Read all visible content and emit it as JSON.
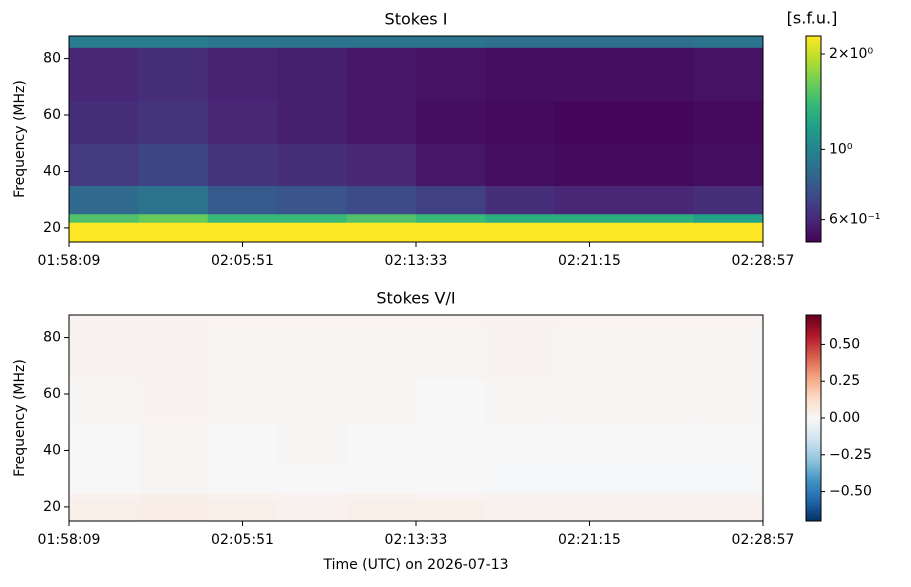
{
  "chart_data": [
    {
      "type": "heatmap",
      "title": "Stokes I",
      "ylabel": "Frequency (MHz)",
      "colorbar_label": "[s.f.u.]",
      "colormap": "viridis",
      "zscale": "log",
      "clim": [
        0.51,
        2.28
      ],
      "cticks": [
        {
          "value": 0.6,
          "label": "6×10⁻¹"
        },
        {
          "value": 1,
          "label": "10⁰"
        },
        {
          "value": 2,
          "label": "2×10⁰"
        }
      ],
      "xlim": [
        7089,
        8937
      ],
      "xticks": [
        {
          "value": 7089,
          "label": "01:58:09"
        },
        {
          "value": 7551,
          "label": "02:05:51"
        },
        {
          "value": 8013,
          "label": "02:13:33"
        },
        {
          "value": 8475,
          "label": "02:21:15"
        },
        {
          "value": 8937,
          "label": "02:28:57"
        }
      ],
      "ylim": [
        15,
        88
      ],
      "yticks": [
        20,
        40,
        60,
        80
      ],
      "y_edges": [
        15,
        22,
        25,
        35,
        50,
        65,
        84,
        88
      ],
      "z": [
        [
          2.3,
          2.3,
          2.3,
          2.3,
          2.3,
          2.3,
          2.3,
          2.3,
          2.3,
          2.3
        ],
        [
          1.5,
          1.6,
          1.4,
          1.4,
          1.5,
          1.4,
          1.3,
          1.3,
          1.3,
          1.2
        ],
        [
          0.85,
          0.9,
          0.78,
          0.76,
          0.72,
          0.68,
          0.62,
          0.6,
          0.6,
          0.62
        ],
        [
          0.66,
          0.7,
          0.64,
          0.62,
          0.6,
          0.56,
          0.54,
          0.53,
          0.53,
          0.54
        ],
        [
          0.62,
          0.64,
          0.6,
          0.58,
          0.56,
          0.54,
          0.53,
          0.52,
          0.52,
          0.53
        ],
        [
          0.6,
          0.62,
          0.59,
          0.58,
          0.56,
          0.55,
          0.54,
          0.54,
          0.54,
          0.55
        ],
        [
          0.95,
          0.95,
          0.92,
          0.9,
          0.9,
          0.9,
          0.88,
          0.88,
          0.88,
          0.9
        ]
      ]
    },
    {
      "type": "heatmap",
      "title": "Stokes V/I",
      "ylabel": "Frequency (MHz)",
      "xlabel": "Time (UTC) on 2026-07-13",
      "colormap": "RdBu_r",
      "zscale": "linear",
      "clim": [
        -0.7,
        0.7
      ],
      "cticks": [
        -0.5,
        -0.25,
        0,
        0.25,
        0.5
      ],
      "cticks_labels": [
        "−0.50",
        "−0.25",
        "0.00",
        "0.25",
        "0.50"
      ],
      "xlim": [
        7089,
        8937
      ],
      "xticks": [
        {
          "value": 7089,
          "label": "01:58:09"
        },
        {
          "value": 7551,
          "label": "02:05:51"
        },
        {
          "value": 8013,
          "label": "02:13:33"
        },
        {
          "value": 8475,
          "label": "02:21:15"
        },
        {
          "value": 8937,
          "label": "02:28:57"
        }
      ],
      "ylim": [
        15,
        88
      ],
      "yticks": [
        20,
        40,
        60,
        80
      ],
      "y_edges": [
        15,
        22,
        25,
        35,
        50,
        65,
        84,
        88
      ],
      "z": [
        [
          0.04,
          0.05,
          0.04,
          0.03,
          0.04,
          0.04,
          0.03,
          0.03,
          0.03,
          0.03
        ],
        [
          0.03,
          0.04,
          0.03,
          0.02,
          0.03,
          0.02,
          0.02,
          0.02,
          0.02,
          0.02
        ],
        [
          0.0,
          0.01,
          0.0,
          0.0,
          0.0,
          0.0,
          -0.01,
          -0.01,
          -0.01,
          -0.01
        ],
        [
          0.0,
          0.01,
          0.0,
          0.01,
          0.0,
          0.0,
          0.0,
          0.0,
          0.0,
          0.0
        ],
        [
          0.01,
          0.02,
          0.01,
          0.01,
          0.01,
          0.0,
          0.01,
          0.01,
          0.01,
          0.01
        ],
        [
          0.02,
          0.02,
          0.01,
          0.01,
          0.01,
          0.01,
          0.02,
          0.01,
          0.01,
          0.01
        ],
        [
          0.02,
          0.02,
          0.02,
          0.02,
          0.02,
          0.02,
          0.02,
          0.02,
          0.02,
          0.02
        ]
      ]
    }
  ]
}
